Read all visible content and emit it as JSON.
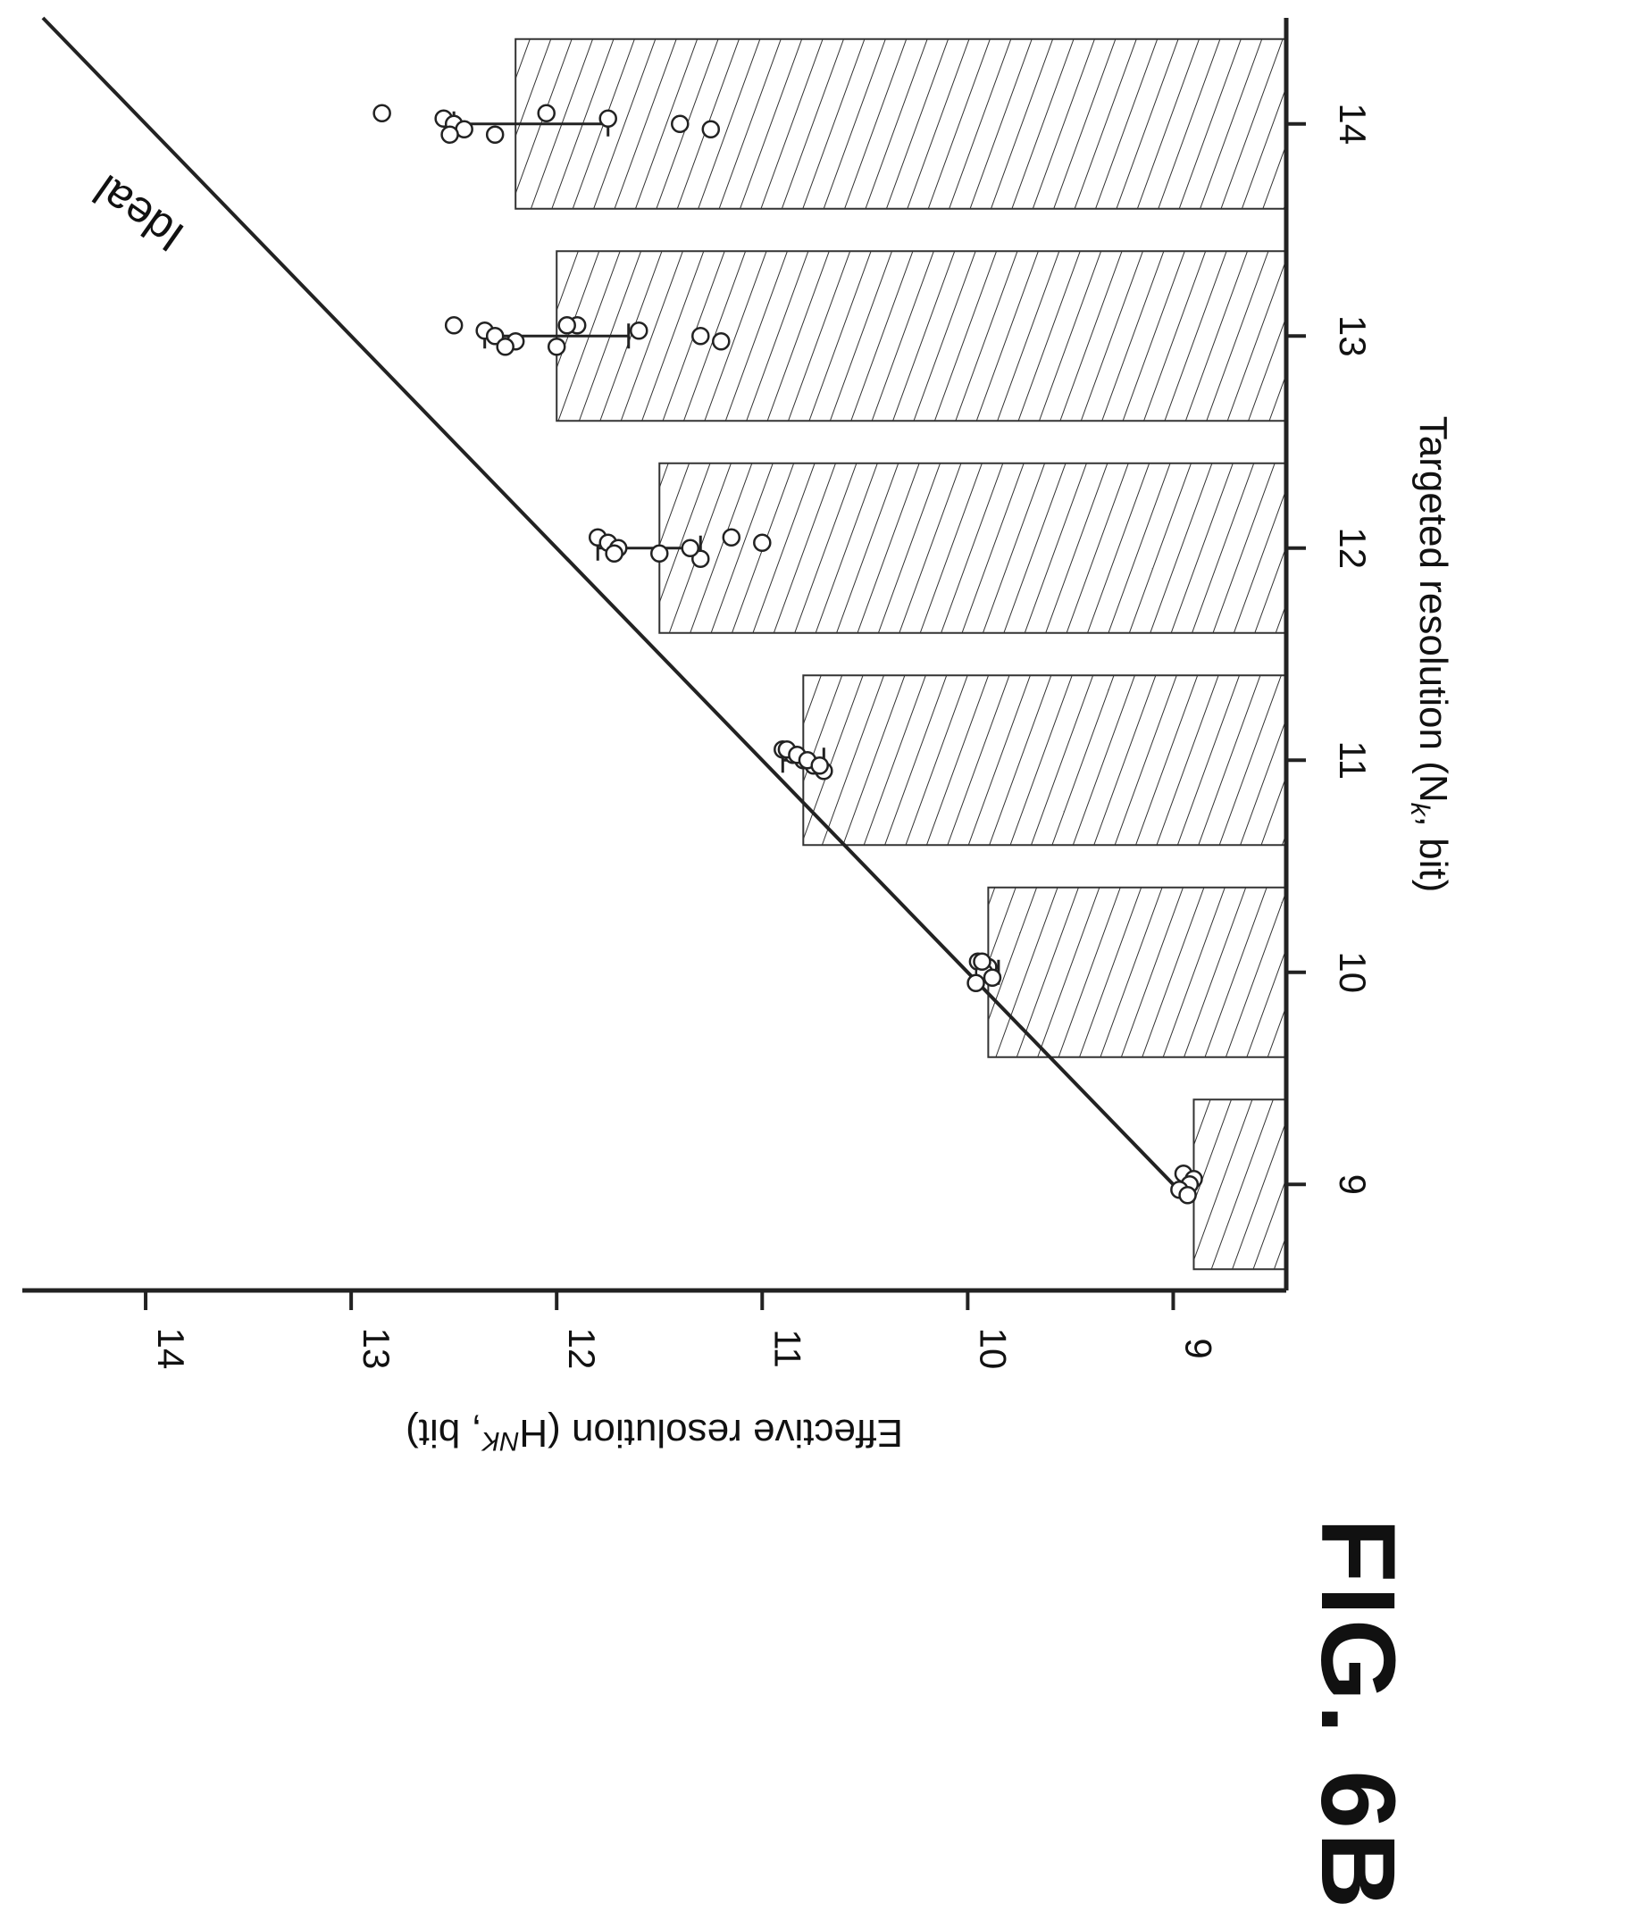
{
  "figure_label": "FIG. 6B",
  "chart_data": {
    "type": "bar",
    "title": "",
    "xlabel": "Targeted resolution (N",
    "xlabel_sub": "k",
    "xlabel_tail": ", bit)",
    "ylabel": "Effective resolution (H",
    "ylabel_sub": "NK",
    "ylabel_tail": ", bit)",
    "categories": [
      "9",
      "10",
      "11",
      "12",
      "13",
      "14"
    ],
    "x": [
      9,
      10,
      11,
      12,
      13,
      14
    ],
    "values": [
      8.9,
      9.9,
      10.8,
      11.5,
      12.0,
      12.2
    ],
    "error_low": [
      8.9,
      9.85,
      10.7,
      11.3,
      11.65,
      11.75
    ],
    "error_high": [
      8.95,
      9.95,
      10.9,
      11.8,
      12.35,
      12.5
    ],
    "points": [
      [
        8.95,
        8.9,
        8.92,
        8.97,
        8.93
      ],
      [
        9.95,
        9.9,
        9.92,
        9.88,
        9.96,
        9.93
      ],
      [
        10.9,
        10.85,
        10.8,
        10.75,
        10.7,
        10.88,
        10.83,
        10.78,
        10.72
      ],
      [
        11.8,
        11.75,
        11.7,
        11.5,
        11.3,
        11.15,
        11.0,
        11.35,
        11.72
      ],
      [
        12.5,
        12.35,
        12.3,
        12.2,
        12.0,
        11.9,
        11.6,
        11.3,
        11.2,
        12.25,
        11.95
      ],
      [
        12.85,
        12.55,
        12.5,
        12.45,
        12.3,
        12.05,
        11.75,
        11.4,
        11.25,
        12.52
      ]
    ],
    "yticks": [
      "9",
      "10",
      "11",
      "12",
      "13",
      "14"
    ],
    "xlim": [
      8.5,
      14.5
    ],
    "ylim": [
      8.45,
      14.6
    ],
    "ideal_line": {
      "label": "Ideal",
      "from": [
        9,
        9
      ],
      "to": [
        14.5,
        14.5
      ]
    },
    "grid": false
  }
}
